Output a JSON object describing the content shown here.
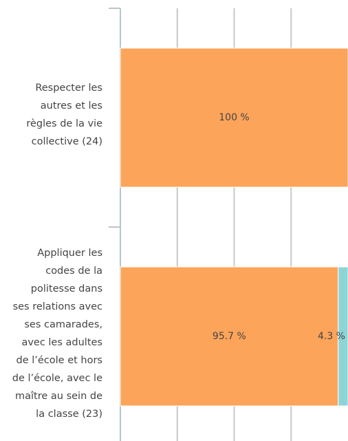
{
  "chart_data": {
    "type": "stacked-bar-horizontal",
    "categories": [
      "Respecter les\nautres et les\nrègles de la vie\ncollective (24)",
      "Appliquer les\ncodes de la\npolitesse dans\nses relations avec\nses camarades,\navec les adultes\nde l’école et hors\nde l’école, avec le\nmaître au sein de\nla classe (23)"
    ],
    "series": [
      {
        "color": "#fca45a",
        "values": [
          100,
          95.7
        ],
        "value_labels": [
          "100 %",
          "95.7 %"
        ]
      },
      {
        "color": "#8dd4d6",
        "values": [
          0,
          4.3
        ],
        "value_labels": [
          null,
          "4.3 %"
        ]
      }
    ],
    "xlim": [
      0,
      100
    ],
    "xticks": [
      0,
      25,
      50,
      75,
      100
    ],
    "grid": true
  }
}
